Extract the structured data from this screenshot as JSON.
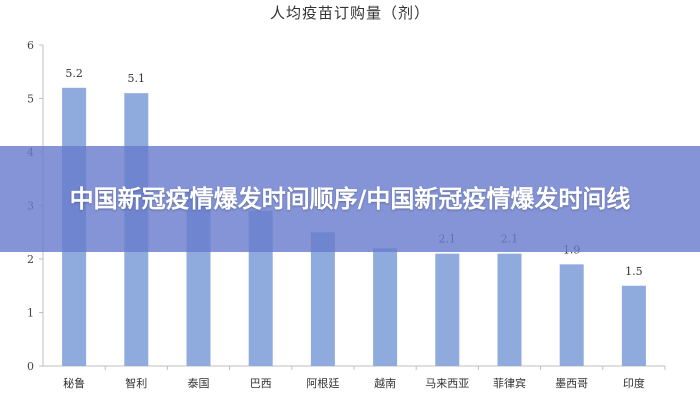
{
  "chart_data": {
    "type": "bar",
    "title": "人均疫苗订购量（剂）",
    "categories": [
      "秘鲁",
      "智利",
      "泰国",
      "巴西",
      "阿根廷",
      "越南",
      "马来西亚",
      "菲律宾",
      "墨西哥",
      "印度"
    ],
    "values": [
      5.2,
      5.1,
      3.3,
      2.9,
      2.5,
      2.2,
      2.1,
      2.1,
      1.9,
      1.5
    ],
    "data_labels": [
      "5.2",
      "5.1",
      "",
      "",
      "",
      "",
      "2.1",
      "2.1",
      "1.9",
      "1.5"
    ],
    "ylim": [
      0,
      6
    ],
    "yticks": [
      "0",
      "1",
      "2",
      "3",
      "4",
      "5",
      "6"
    ],
    "xlabel": "",
    "ylabel": "",
    "grid": false,
    "bar_color": "#8faadc",
    "axis_color": "#bfbfbf"
  },
  "banner": {
    "text": "中国新冠疫情爆发时间顺序/中国新冠疫情爆发时间线",
    "color": "#6b7fcf"
  }
}
